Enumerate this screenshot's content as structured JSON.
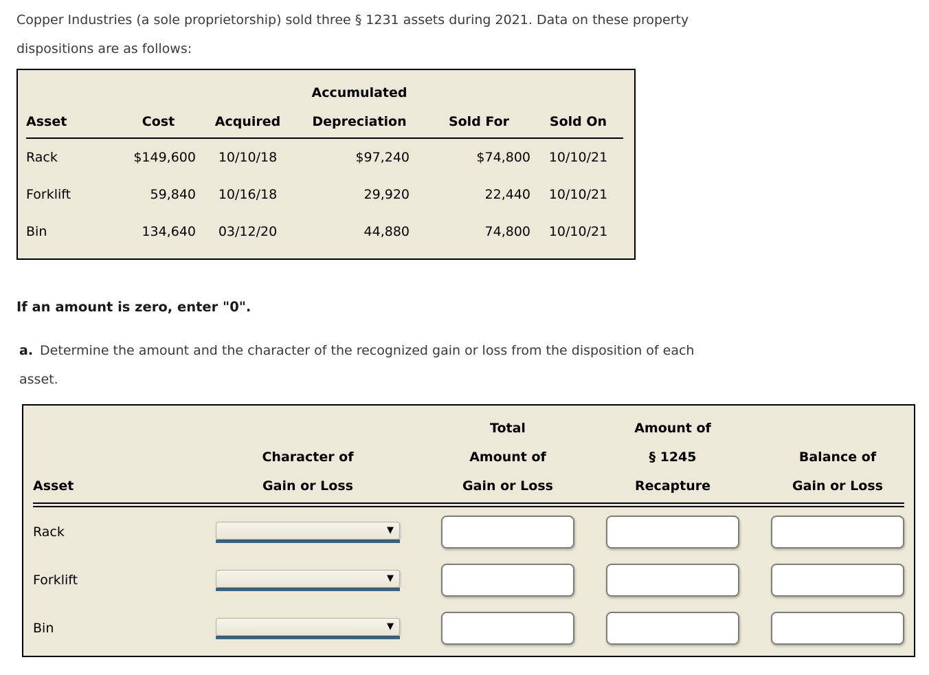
{
  "page": {
    "intro_lines": [
      "Copper Industries (a sole proprietorship) sold three § 1231 assets during 2021. Data on these property",
      "dispositions are as follows:"
    ],
    "zero_note": "If an amount is zero, enter \"0\".",
    "part_a": {
      "label": "a.",
      "line1": "Determine the amount and the character of the recognized gain or loss from the disposition of each",
      "line2": "asset."
    }
  },
  "asset_table": {
    "headers": {
      "asset": "Asset",
      "cost": "Cost",
      "acquired": "Acquired",
      "acc_dep_line1": "Accumulated",
      "acc_dep_line2": "Depreciation",
      "sold_for": "Sold For",
      "sold_on": "Sold On"
    },
    "rows": [
      {
        "asset": "Rack",
        "cost": "$149,600",
        "acquired": "10/10/18",
        "acc_dep": "$97,240",
        "sold_for": "$74,800",
        "sold_on": "10/10/21"
      },
      {
        "asset": "Forklift",
        "cost": "59,840",
        "acquired": "10/16/18",
        "acc_dep": "29,920",
        "sold_for": "22,440",
        "sold_on": "10/10/21"
      },
      {
        "asset": "Bin",
        "cost": "134,640",
        "acquired": "03/12/20",
        "acc_dep": "44,880",
        "sold_for": "74,800",
        "sold_on": "10/10/21"
      }
    ]
  },
  "answer_table": {
    "caret_glyph": "▼",
    "headers": {
      "asset": "Asset",
      "character": [
        "Character of",
        "Gain or Loss"
      ],
      "total": [
        "Total",
        "Amount of",
        "Gain or Loss"
      ],
      "recapture": [
        "Amount of",
        "§ 1245",
        "Recapture"
      ],
      "balance": [
        "Balance of",
        "Gain or Loss"
      ]
    },
    "rows": [
      {
        "asset": "Rack",
        "character_value": "",
        "total_value": "",
        "recapture_value": "",
        "balance_value": ""
      },
      {
        "asset": "Forklift",
        "character_value": "",
        "total_value": "",
        "recapture_value": "",
        "balance_value": ""
      },
      {
        "asset": "Bin",
        "character_value": "",
        "total_value": "",
        "recapture_value": "",
        "balance_value": ""
      }
    ]
  },
  "colors": {
    "table_background": "#ECE9D8",
    "select_underline_blue": "#306795",
    "input_border_gray": "#7E7E77",
    "table_border_black": "#000000"
  }
}
